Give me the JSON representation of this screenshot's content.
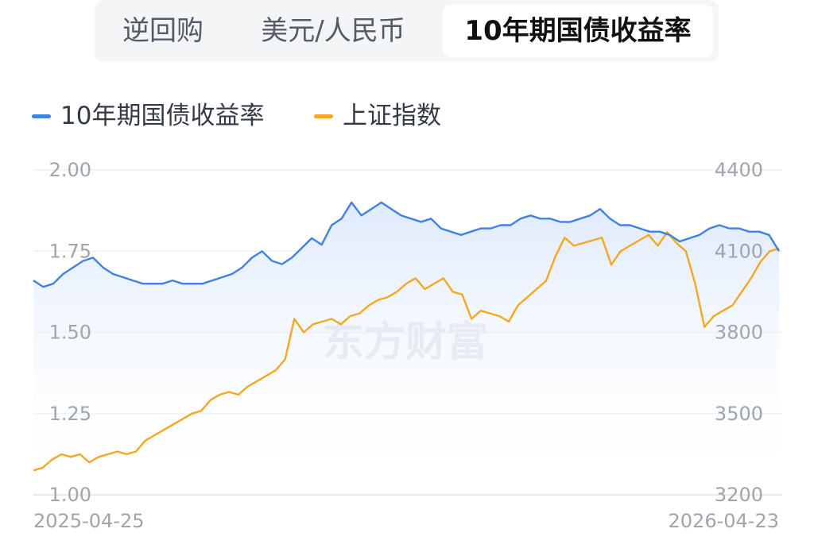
{
  "tabs": [
    {
      "label": "逆回购",
      "active": false
    },
    {
      "label": "美元/人民币",
      "active": false
    },
    {
      "label": "10年期国债收益率",
      "active": true
    }
  ],
  "chart_data": {
    "type": "line",
    "x_start": "2025-04-25",
    "x_end": "2026-04-23",
    "left_axis": {
      "ticks": [
        "2.00",
        "1.75",
        "1.50",
        "1.25",
        "1.00"
      ],
      "ylim": [
        1.0,
        2.0
      ]
    },
    "right_axis": {
      "ticks": [
        "4400",
        "4100",
        "3800",
        "3500",
        "3200"
      ],
      "ylim": [
        3200,
        4400
      ]
    },
    "grid": true,
    "legend_position": "top-left",
    "watermark": "东方财富",
    "series": [
      {
        "name": "10年期国债收益率",
        "axis": "left",
        "color": "#3f82e4",
        "values": [
          1.66,
          1.64,
          1.65,
          1.68,
          1.7,
          1.72,
          1.73,
          1.7,
          1.68,
          1.67,
          1.66,
          1.65,
          1.65,
          1.65,
          1.66,
          1.65,
          1.65,
          1.65,
          1.66,
          1.67,
          1.68,
          1.7,
          1.73,
          1.75,
          1.72,
          1.71,
          1.73,
          1.76,
          1.79,
          1.77,
          1.83,
          1.85,
          1.9,
          1.86,
          1.88,
          1.9,
          1.88,
          1.86,
          1.85,
          1.84,
          1.85,
          1.82,
          1.81,
          1.8,
          1.81,
          1.82,
          1.82,
          1.83,
          1.83,
          1.85,
          1.86,
          1.85,
          1.85,
          1.84,
          1.84,
          1.85,
          1.86,
          1.88,
          1.85,
          1.83,
          1.83,
          1.82,
          1.81,
          1.81,
          1.8,
          1.78,
          1.79,
          1.8,
          1.82,
          1.83,
          1.82,
          1.82,
          1.81,
          1.81,
          1.8,
          1.75
        ]
      },
      {
        "name": "上证指数",
        "axis": "right",
        "color": "#f5a623",
        "values": [
          3290,
          3300,
          3330,
          3350,
          3340,
          3350,
          3320,
          3340,
          3350,
          3360,
          3350,
          3360,
          3400,
          3420,
          3440,
          3460,
          3480,
          3500,
          3510,
          3550,
          3570,
          3580,
          3570,
          3600,
          3620,
          3640,
          3660,
          3700,
          3850,
          3800,
          3830,
          3840,
          3850,
          3830,
          3860,
          3870,
          3900,
          3920,
          3930,
          3950,
          3980,
          4000,
          3960,
          3980,
          4000,
          3950,
          3940,
          3850,
          3880,
          3870,
          3860,
          3840,
          3900,
          3930,
          3960,
          3990,
          4080,
          4150,
          4120,
          4130,
          4140,
          4150,
          4050,
          4100,
          4120,
          4140,
          4160,
          4120,
          4170,
          4130,
          4100,
          3980,
          3820,
          3860,
          3880,
          3900,
          3950,
          4000,
          4060,
          4100,
          4110
        ]
      }
    ]
  }
}
